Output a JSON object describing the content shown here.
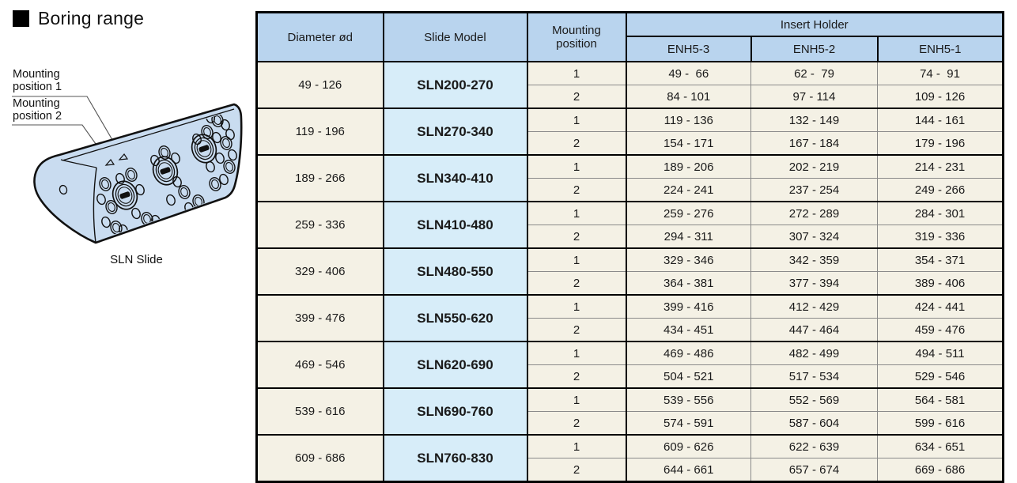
{
  "page": {
    "title": "Boring range",
    "caption": "SLN Slide"
  },
  "diagram": {
    "labels": [
      {
        "text": "Mounting position 1"
      },
      {
        "text": "Mounting position 2"
      }
    ],
    "marker_icons": [
      "mounting-position-1-arrow",
      "mounting-position-2-arrow"
    ]
  },
  "table": {
    "headers": {
      "diameter": "Diameter ød",
      "model": "Slide Model",
      "mounting": "Mounting position",
      "insert_holder": "Insert Holder",
      "columns": [
        "ENH5-3",
        "ENH5-2",
        "ENH5-1"
      ]
    },
    "groups": [
      {
        "diameter": "49 - 126",
        "model": "SLN200-270",
        "rows": [
          {
            "position": "1",
            "enh5_3": "49 -  66",
            "enh5_2": "62 -  79",
            "enh5_1": "74 -  91"
          },
          {
            "position": "2",
            "enh5_3": "84 - 101",
            "enh5_2": "97 - 114",
            "enh5_1": "109 - 126"
          }
        ]
      },
      {
        "diameter": "119 - 196",
        "model": "SLN270-340",
        "rows": [
          {
            "position": "1",
            "enh5_3": "119 - 136",
            "enh5_2": "132 - 149",
            "enh5_1": "144 - 161"
          },
          {
            "position": "2",
            "enh5_3": "154 - 171",
            "enh5_2": "167 - 184",
            "enh5_1": "179 - 196"
          }
        ]
      },
      {
        "diameter": "189 - 266",
        "model": "SLN340-410",
        "rows": [
          {
            "position": "1",
            "enh5_3": "189 - 206",
            "enh5_2": "202 - 219",
            "enh5_1": "214 - 231"
          },
          {
            "position": "2",
            "enh5_3": "224 - 241",
            "enh5_2": "237 - 254",
            "enh5_1": "249 - 266"
          }
        ]
      },
      {
        "diameter": "259 - 336",
        "model": "SLN410-480",
        "rows": [
          {
            "position": "1",
            "enh5_3": "259 - 276",
            "enh5_2": "272 - 289",
            "enh5_1": "284 - 301"
          },
          {
            "position": "2",
            "enh5_3": "294 - 311",
            "enh5_2": "307 - 324",
            "enh5_1": "319 - 336"
          }
        ]
      },
      {
        "diameter": "329 - 406",
        "model": "SLN480-550",
        "rows": [
          {
            "position": "1",
            "enh5_3": "329 - 346",
            "enh5_2": "342 - 359",
            "enh5_1": "354 - 371"
          },
          {
            "position": "2",
            "enh5_3": "364 - 381",
            "enh5_2": "377 - 394",
            "enh5_1": "389 - 406"
          }
        ]
      },
      {
        "diameter": "399 - 476",
        "model": "SLN550-620",
        "rows": [
          {
            "position": "1",
            "enh5_3": "399 - 416",
            "enh5_2": "412 - 429",
            "enh5_1": "424 - 441"
          },
          {
            "position": "2",
            "enh5_3": "434 - 451",
            "enh5_2": "447 - 464",
            "enh5_1": "459 - 476"
          }
        ]
      },
      {
        "diameter": "469 - 546",
        "model": "SLN620-690",
        "rows": [
          {
            "position": "1",
            "enh5_3": "469 - 486",
            "enh5_2": "482 - 499",
            "enh5_1": "494 - 511"
          },
          {
            "position": "2",
            "enh5_3": "504 - 521",
            "enh5_2": "517 - 534",
            "enh5_1": "529 - 546"
          }
        ]
      },
      {
        "diameter": "539 - 616",
        "model": "SLN690-760",
        "rows": [
          {
            "position": "1",
            "enh5_3": "539 - 556",
            "enh5_2": "552 - 569",
            "enh5_1": "564 - 581"
          },
          {
            "position": "2",
            "enh5_3": "574 - 591",
            "enh5_2": "587 - 604",
            "enh5_1": "599 - 616"
          }
        ]
      },
      {
        "diameter": "609 - 686",
        "model": "SLN760-830",
        "rows": [
          {
            "position": "1",
            "enh5_3": "609 - 626",
            "enh5_2": "622 - 639",
            "enh5_1": "634 - 651"
          },
          {
            "position": "2",
            "enh5_3": "644 - 661",
            "enh5_2": "657 - 674",
            "enh5_1": "669 - 686"
          }
        ]
      }
    ]
  },
  "colors": {
    "header_bg": "#b9d4ee",
    "model_cell_bg": "#d7edf9",
    "data_cell_bg": "#f4f1e5",
    "diagram_fill": "#c9dcf0",
    "grid_gray": "#8a8a8a",
    "border_black": "#000000"
  }
}
